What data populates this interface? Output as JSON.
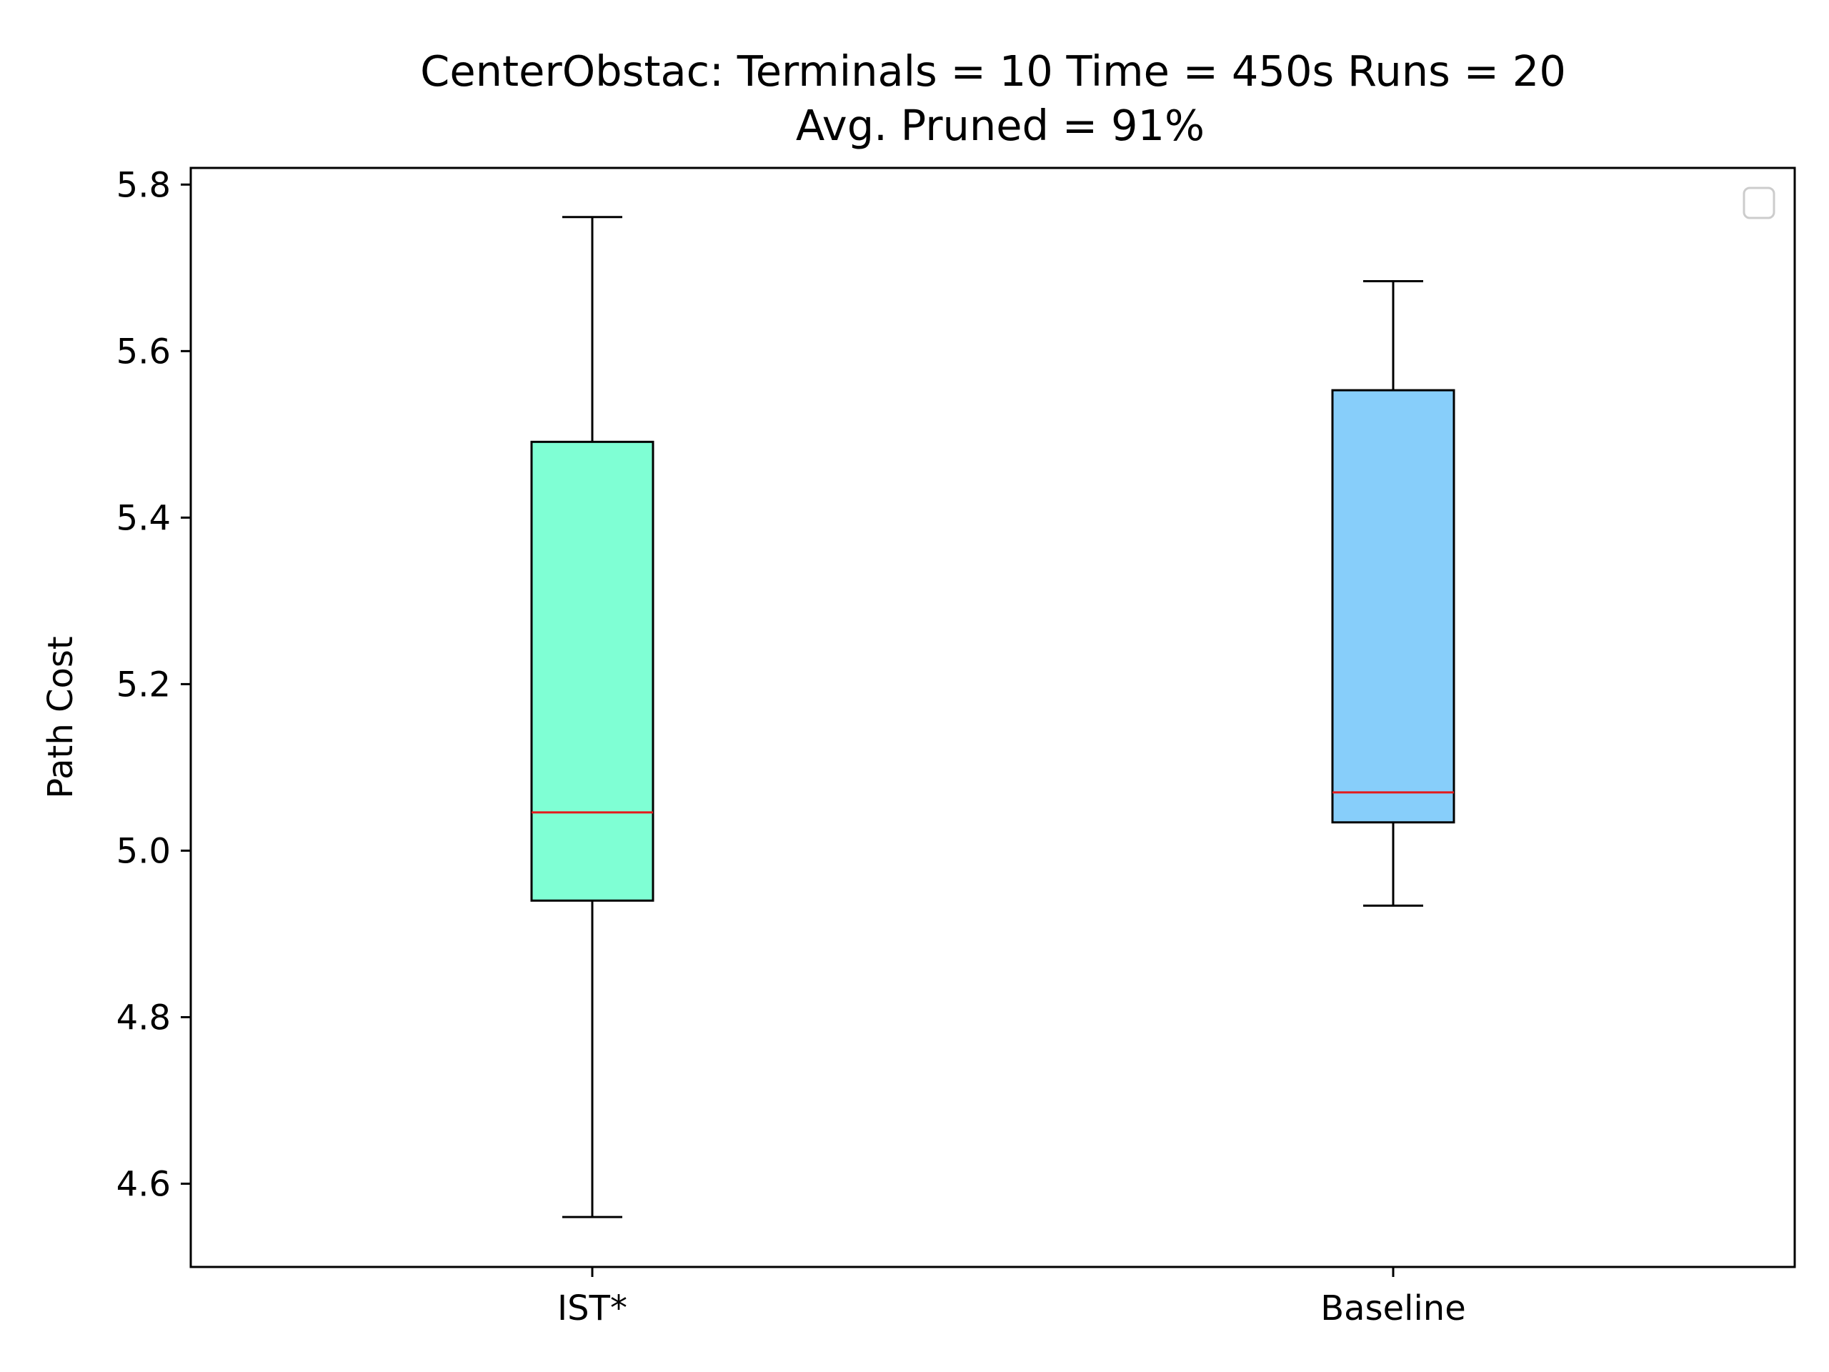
{
  "chart_data": {
    "type": "box",
    "title": [
      "CenterObstac:  Terminals = 10  Time = 450s  Runs = 20",
      "Avg. Pruned = 91%"
    ],
    "xlabel": "",
    "ylabel": "Path Cost",
    "ylim": [
      4.5,
      5.82
    ],
    "yticks": [
      4.6,
      4.8,
      5.0,
      5.2,
      5.4,
      5.6,
      5.8
    ],
    "ytick_labels": [
      "4.6",
      "4.8",
      "5.0",
      "5.2",
      "5.4",
      "5.6",
      "5.8"
    ],
    "categories": [
      "IST*",
      "Baseline"
    ],
    "boxes": [
      {
        "category": "IST*",
        "whisker_low": 4.56,
        "q1": 4.94,
        "median": 5.046,
        "q3": 5.491,
        "whisker_high": 5.761,
        "color": "#7fffd4"
      },
      {
        "category": "Baseline",
        "whisker_low": 4.934,
        "q1": 5.034,
        "median": 5.07,
        "q3": 5.553,
        "whisker_high": 5.684,
        "color": "#87cefa"
      }
    ],
    "median_color": "#e31a1c",
    "grid": false,
    "legend": {
      "placement": "upper-right",
      "entries": []
    }
  }
}
